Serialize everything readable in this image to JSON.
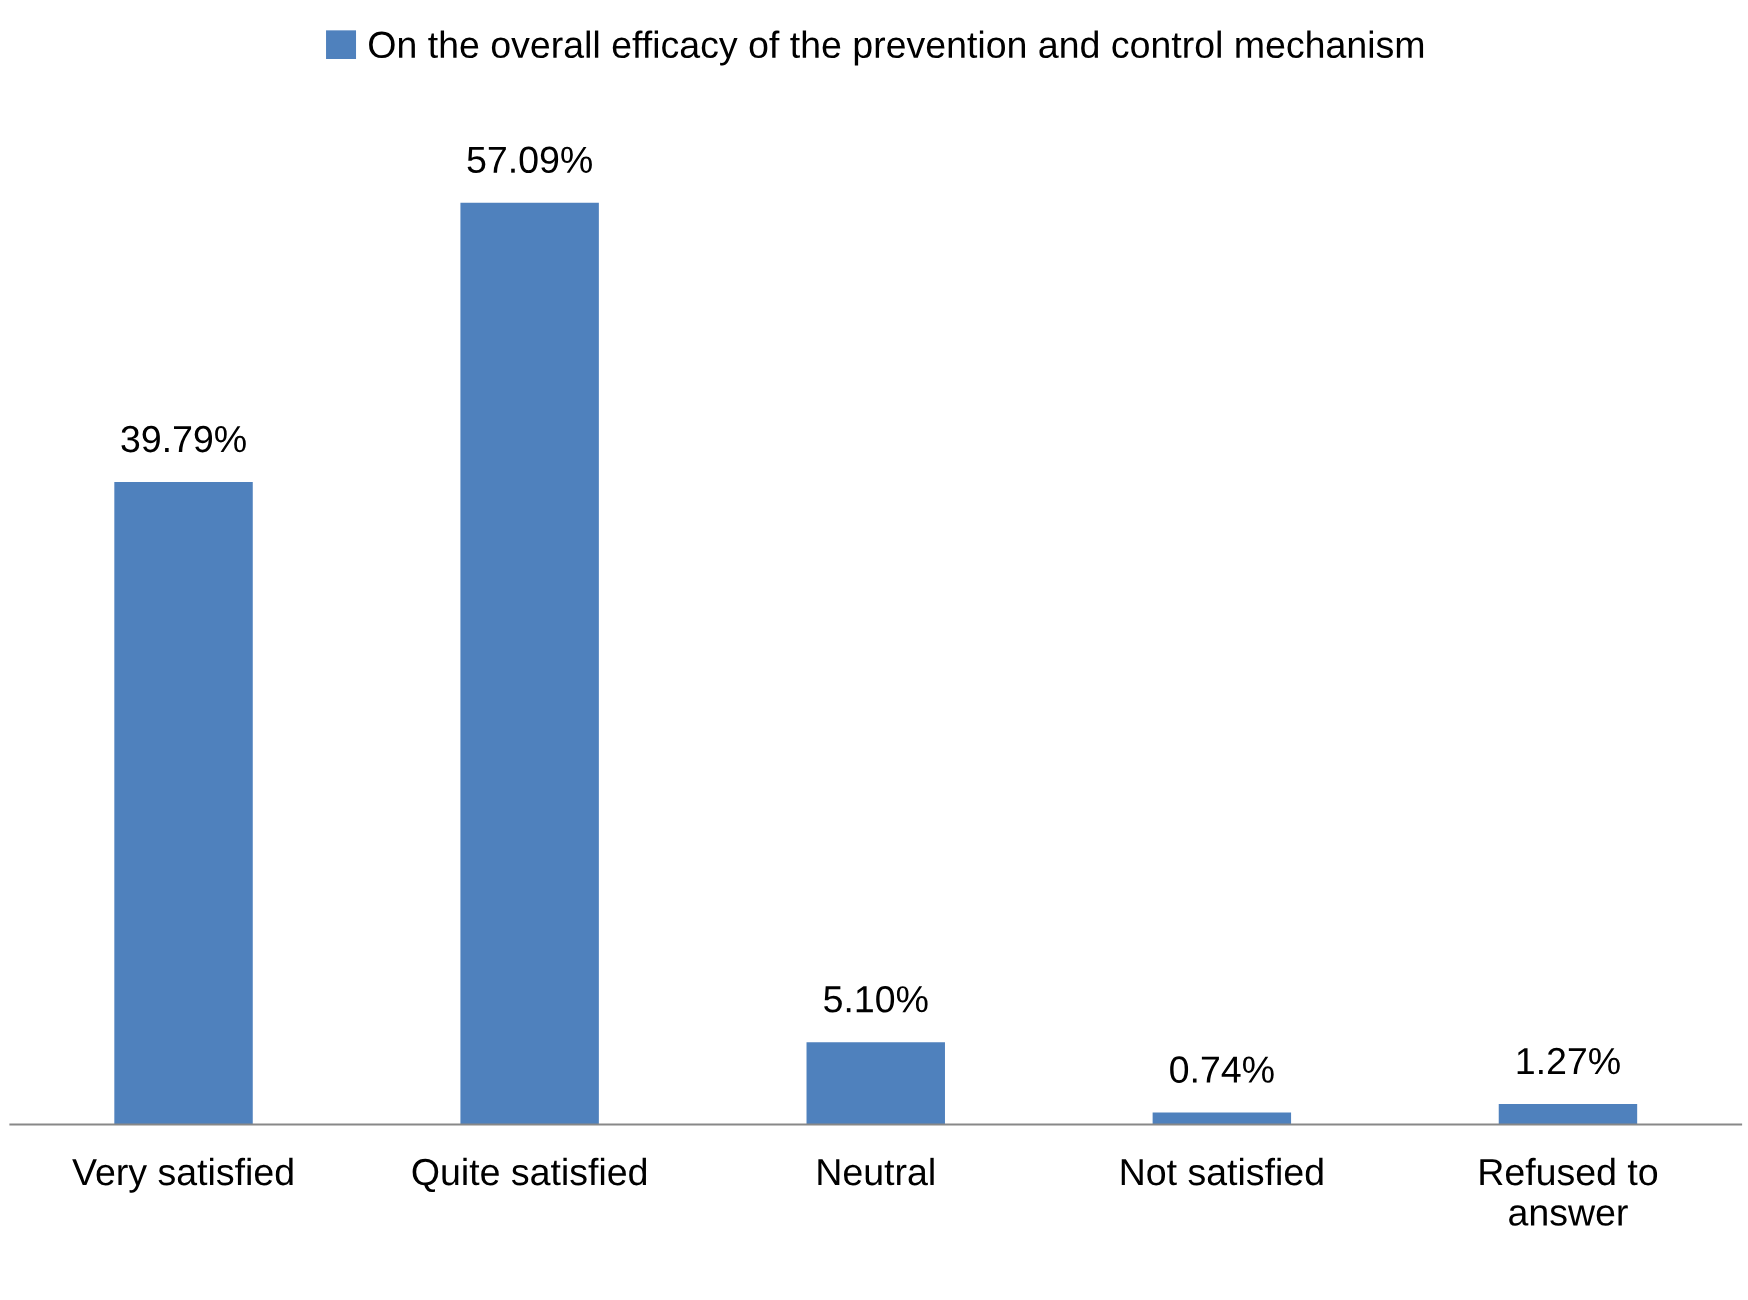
{
  "chart_data": {
    "type": "bar",
    "categories": [
      "Very satisfied",
      "Quite satisfied",
      "Neutral",
      "Not satisfied",
      "Refused to\nanswer"
    ],
    "series": [
      {
        "name": "On the overall efficacy of the prevention and control mechanism",
        "color": "#4f81bd",
        "values": [
          39.79,
          57.09,
          5.1,
          0.74,
          1.27
        ],
        "value_labels": [
          "39.79%",
          "57.09%",
          "5.10%",
          "0.74%",
          "1.27%"
        ]
      }
    ],
    "tick_labels": "x",
    "grid": false,
    "legend": "top"
  }
}
